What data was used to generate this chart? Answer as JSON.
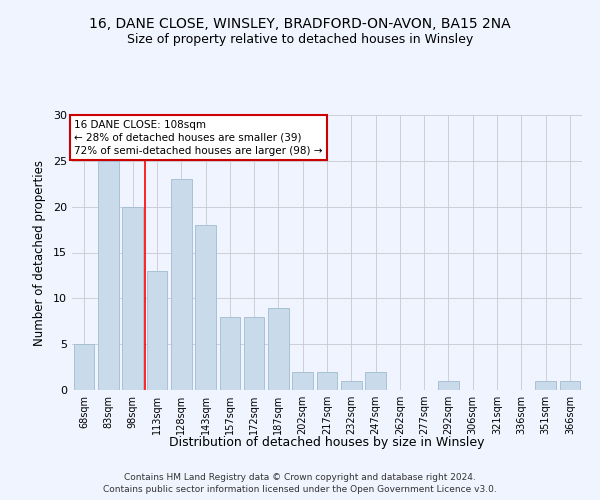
{
  "title1": "16, DANE CLOSE, WINSLEY, BRADFORD-ON-AVON, BA15 2NA",
  "title2": "Size of property relative to detached houses in Winsley",
  "xlabel": "Distribution of detached houses by size in Winsley",
  "ylabel": "Number of detached properties",
  "categories": [
    "68sqm",
    "83sqm",
    "98sqm",
    "113sqm",
    "128sqm",
    "143sqm",
    "157sqm",
    "172sqm",
    "187sqm",
    "202sqm",
    "217sqm",
    "232sqm",
    "247sqm",
    "262sqm",
    "277sqm",
    "292sqm",
    "306sqm",
    "321sqm",
    "336sqm",
    "351sqm",
    "366sqm"
  ],
  "values": [
    5,
    25,
    20,
    13,
    23,
    18,
    8,
    8,
    9,
    2,
    2,
    1,
    2,
    0,
    0,
    1,
    0,
    0,
    0,
    1,
    1
  ],
  "bar_color": "#c9daea",
  "bar_edgecolor": "#a0bcd0",
  "annotation_line1": "16 DANE CLOSE: 108sqm",
  "annotation_line2": "← 28% of detached houses are smaller (39)",
  "annotation_line3": "72% of semi-detached houses are larger (98) →",
  "annotation_box_color": "#cc0000",
  "red_line_x": 2.5,
  "ylim": [
    0,
    30
  ],
  "yticks": [
    0,
    5,
    10,
    15,
    20,
    25,
    30
  ],
  "footer1": "Contains HM Land Registry data © Crown copyright and database right 2024.",
  "footer2": "Contains public sector information licensed under the Open Government Licence v3.0.",
  "background_color": "#f0f4ff",
  "grid_color": "#c8c8d0"
}
